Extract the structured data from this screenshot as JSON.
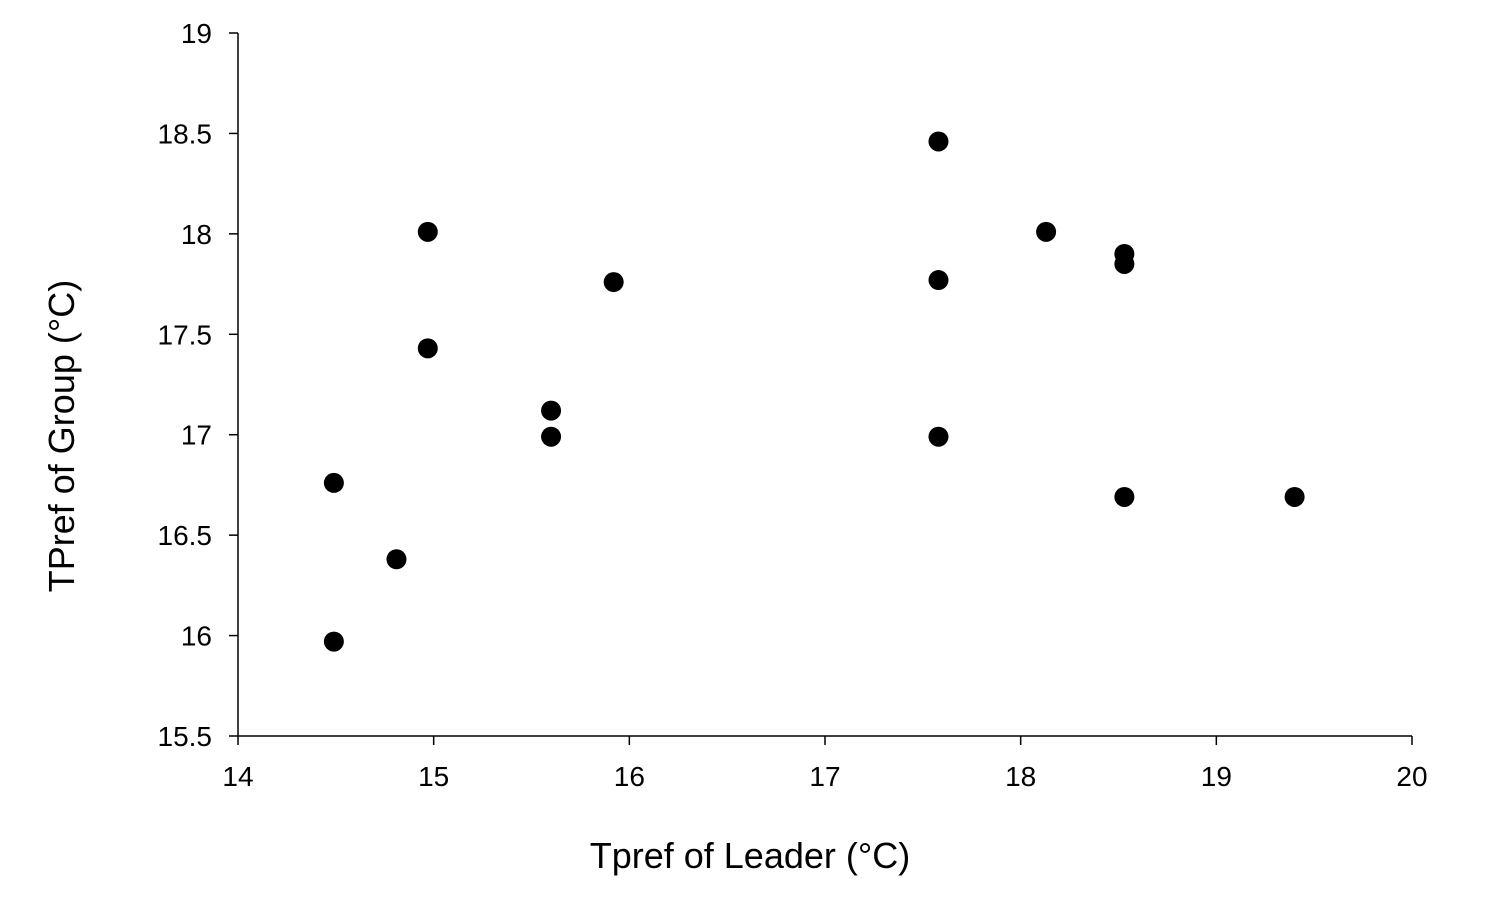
{
  "chart_data": {
    "type": "scatter",
    "title": "",
    "xlabel": "Tpref of Leader (°C)",
    "ylabel": "TPref of Group (°C)",
    "xlim": [
      14,
      20
    ],
    "ylim": [
      15.5,
      19
    ],
    "x_ticks": [
      "14",
      "15",
      "16",
      "17",
      "18",
      "19",
      "20"
    ],
    "y_ticks": [
      "15.5",
      "16",
      "16.5",
      "17",
      "17.5",
      "18",
      "18.5",
      "19"
    ],
    "grid": false,
    "legend": "none",
    "marker_color": "#000000",
    "series": [
      {
        "points": [
          {
            "x": 14.49,
            "y": 16.76
          },
          {
            "x": 14.49,
            "y": 15.97
          },
          {
            "x": 14.81,
            "y": 16.38
          },
          {
            "x": 14.97,
            "y": 18.01
          },
          {
            "x": 14.97,
            "y": 17.43
          },
          {
            "x": 15.6,
            "y": 17.12
          },
          {
            "x": 15.6,
            "y": 16.99
          },
          {
            "x": 15.92,
            "y": 17.76
          },
          {
            "x": 17.58,
            "y": 18.46
          },
          {
            "x": 17.58,
            "y": 17.77
          },
          {
            "x": 17.58,
            "y": 16.99
          },
          {
            "x": 18.13,
            "y": 18.01
          },
          {
            "x": 18.53,
            "y": 17.9
          },
          {
            "x": 18.53,
            "y": 17.85
          },
          {
            "x": 18.53,
            "y": 16.69
          },
          {
            "x": 19.4,
            "y": 16.69
          }
        ]
      }
    ]
  }
}
